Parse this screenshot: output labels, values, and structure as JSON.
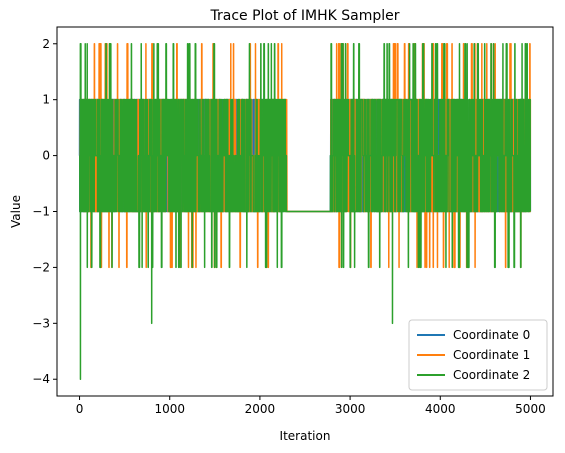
{
  "chart_data": {
    "type": "line",
    "title": "Trace Plot of IMHK Sampler",
    "xlabel": "Iteration",
    "ylabel": "Value",
    "xlim": [
      -250,
      5250
    ],
    "ylim": [
      -4.3,
      2.3
    ],
    "x_ticks": [
      0,
      1000,
      2000,
      3000,
      4000,
      5000
    ],
    "x_tick_labels": [
      "0",
      "1000",
      "2000",
      "3000",
      "4000",
      "5000"
    ],
    "y_ticks": [
      -4,
      -3,
      -2,
      -1,
      0,
      1,
      2
    ],
    "y_tick_labels": [
      "−4",
      "−3",
      "−2",
      "−1",
      "0",
      "1",
      "2"
    ],
    "iterations": 5000,
    "stuck_interval": {
      "from": 2300,
      "to": 2780,
      "value": -1
    },
    "legend_position": "lower-right",
    "grid": false,
    "series": [
      {
        "name": "Coordinate 0",
        "color": "#1f77b4",
        "values_range": [
          -1,
          1
        ],
        "notable_points": [
          {
            "x": 0,
            "y": 0
          }
        ]
      },
      {
        "name": "Coordinate 1",
        "color": "#ff7f0e",
        "values_range": [
          -2,
          2
        ],
        "notable_points": [
          {
            "x": 0,
            "y": 0
          }
        ]
      },
      {
        "name": "Coordinate 2",
        "color": "#2ca02c",
        "values_range": [
          -4,
          2
        ],
        "notable_points": [
          {
            "x": 0,
            "y": 0
          },
          {
            "x": 10,
            "y": -4
          },
          {
            "x": 800,
            "y": -3
          },
          {
            "x": 3470,
            "y": -3
          }
        ]
      }
    ]
  }
}
